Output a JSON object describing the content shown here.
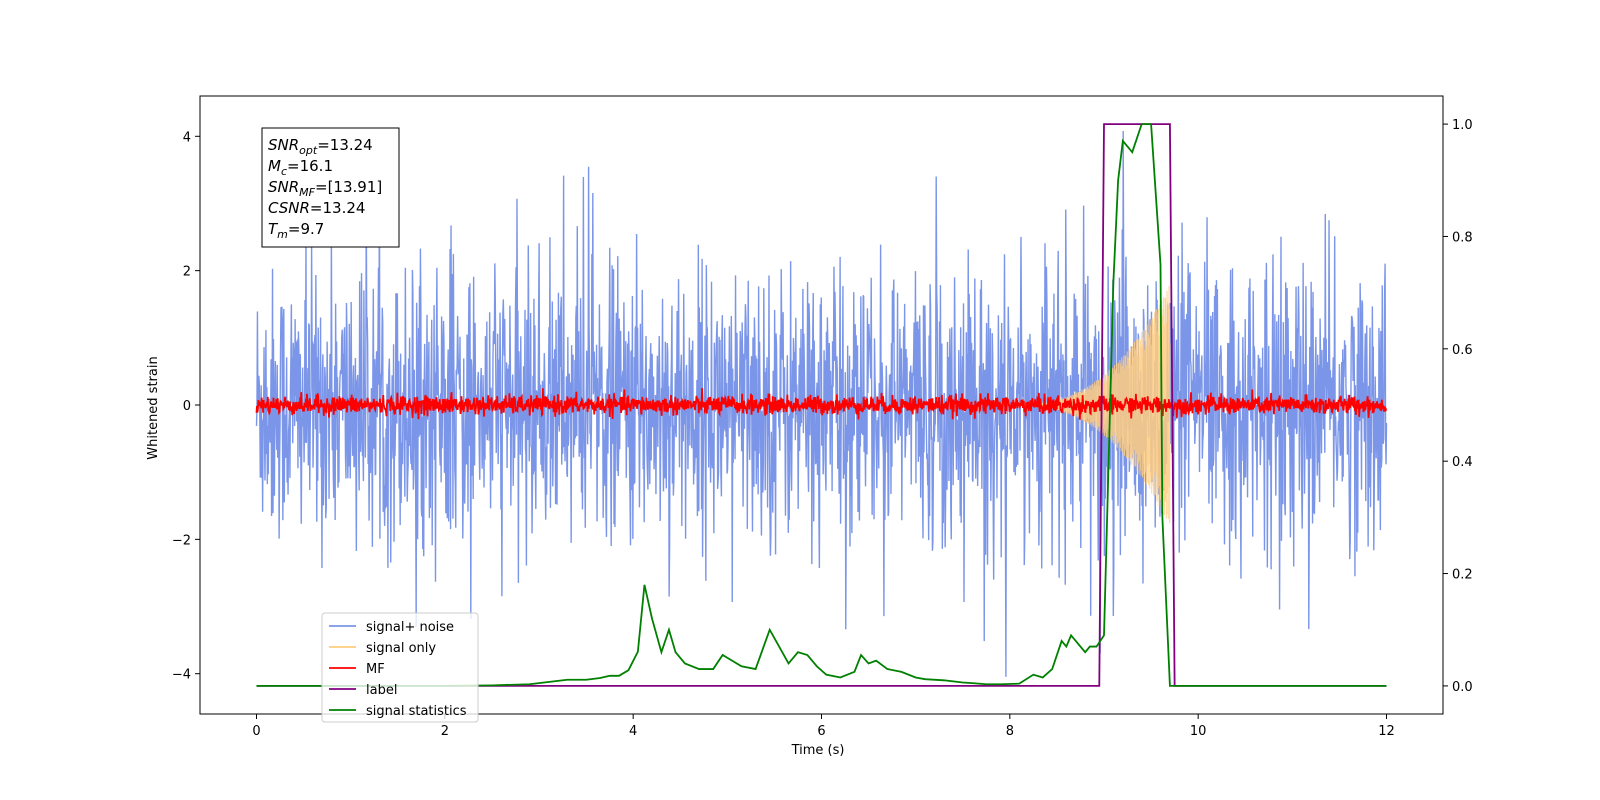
{
  "chart_data": {
    "type": "line",
    "title": "",
    "xlabel": "Time (s)",
    "ylabel": "Whitened strain",
    "xlim": [
      -0.6,
      12.6
    ],
    "xticks": [
      0,
      2,
      4,
      6,
      8,
      10,
      12
    ],
    "ylim_left": [
      -4.6,
      4.6
    ],
    "yticks_left": [
      -4,
      -2,
      0,
      2,
      4
    ],
    "ylim_right": [
      -0.05,
      1.05
    ],
    "yticks_right": [
      0.0,
      0.2,
      0.4,
      0.6,
      0.8,
      1.0
    ],
    "grid": false,
    "legend_position": "lower-left",
    "annotation": {
      "lines": [
        {
          "base": "SNR",
          "sub": "opt",
          "value": "=13.24"
        },
        {
          "base": "M",
          "sub": "c",
          "value": "=16.1"
        },
        {
          "base": "SNR",
          "sub": "MF",
          "value": "=[13.91]"
        },
        {
          "base": "CSNR",
          "sub": "",
          "value": "=13.24"
        },
        {
          "base": "T",
          "sub": "m",
          "value": "=9.7"
        }
      ]
    },
    "series": [
      {
        "name": "signal+ noise",
        "axis": "left",
        "color": "#7b96e8",
        "kind": "noise",
        "x_range": [
          0,
          12
        ],
        "amplitude_sigma": 1.0,
        "peak_max": 4.2,
        "peak_min": -4.1
      },
      {
        "name": "signal only",
        "axis": "left",
        "color": "#ffcc80",
        "kind": "chirp",
        "x_range": [
          8.0,
          9.7
        ],
        "amplitude_end": 1.8
      },
      {
        "name": "MF",
        "axis": "left",
        "color": "#ff0000",
        "kind": "noise",
        "x_range": [
          0,
          12
        ],
        "amplitude_sigma": 0.07
      },
      {
        "name": "label",
        "axis": "right",
        "color": "#800080",
        "x": [
          0,
          8.95,
          9.0,
          9.7,
          9.75,
          12
        ],
        "y": [
          0,
          0,
          1,
          1,
          0,
          0
        ]
      },
      {
        "name": "signal statistics",
        "axis": "right",
        "color": "#008000",
        "x": [
          0,
          0.5,
          1.0,
          1.5,
          2.0,
          2.5,
          2.9,
          3.1,
          3.3,
          3.5,
          3.65,
          3.75,
          3.85,
          3.95,
          4.05,
          4.12,
          4.2,
          4.3,
          4.38,
          4.45,
          4.55,
          4.7,
          4.85,
          4.95,
          5.05,
          5.15,
          5.3,
          5.45,
          5.55,
          5.65,
          5.75,
          5.85,
          5.95,
          6.05,
          6.2,
          6.35,
          6.42,
          6.5,
          6.58,
          6.7,
          6.85,
          7.0,
          7.1,
          7.3,
          7.5,
          7.6,
          7.75,
          7.9,
          8.1,
          8.25,
          8.35,
          8.45,
          8.55,
          8.6,
          8.65,
          8.7,
          8.8,
          8.85,
          8.92,
          9.0,
          9.1,
          9.15,
          9.2,
          9.3,
          9.4,
          9.5,
          9.6,
          9.62,
          9.7,
          9.75,
          12.0
        ],
        "y": [
          0.0,
          0.0,
          0.0,
          0.0,
          0.0,
          0.001,
          0.003,
          0.007,
          0.011,
          0.011,
          0.014,
          0.018,
          0.018,
          0.028,
          0.061,
          0.18,
          0.12,
          0.06,
          0.1,
          0.06,
          0.04,
          0.03,
          0.03,
          0.055,
          0.045,
          0.035,
          0.03,
          0.1,
          0.07,
          0.04,
          0.06,
          0.055,
          0.035,
          0.02,
          0.015,
          0.025,
          0.055,
          0.04,
          0.045,
          0.03,
          0.025,
          0.015,
          0.012,
          0.01,
          0.006,
          0.005,
          0.003,
          0.003,
          0.004,
          0.02,
          0.015,
          0.03,
          0.08,
          0.07,
          0.09,
          0.08,
          0.06,
          0.07,
          0.07,
          0.09,
          0.72,
          0.9,
          0.97,
          0.95,
          1.0,
          1.0,
          0.75,
          0.3,
          0.0,
          0.0,
          0.0
        ]
      }
    ]
  }
}
